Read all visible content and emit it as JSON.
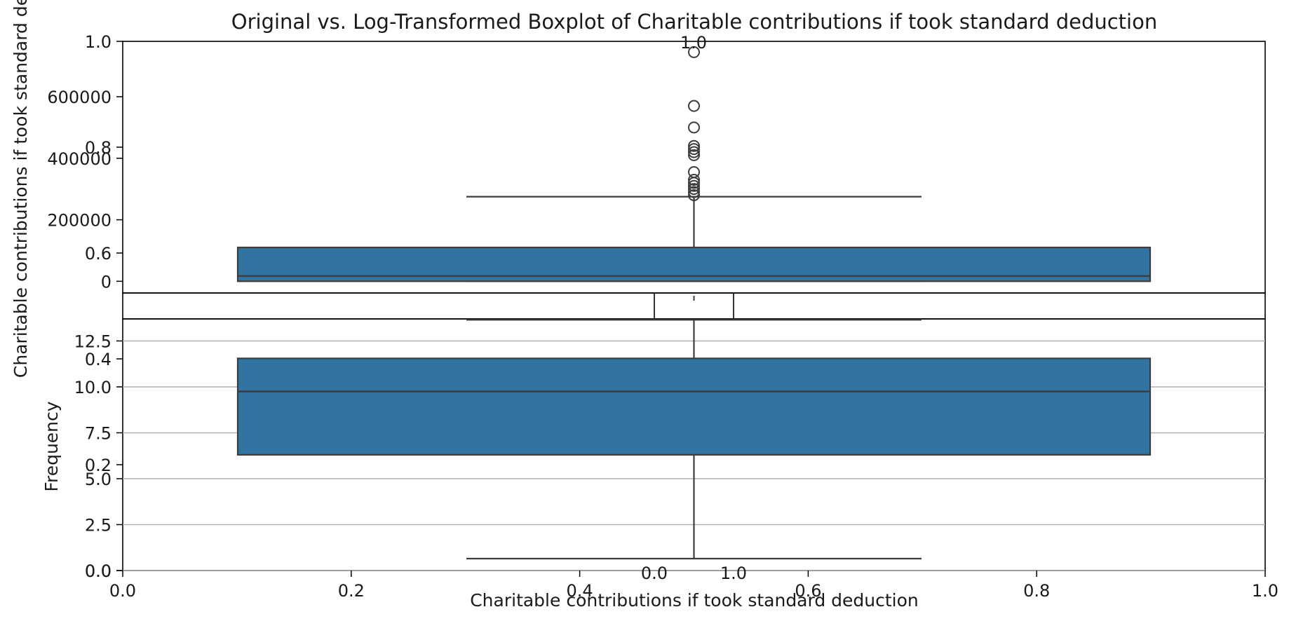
{
  "chart_data": {
    "type": "boxplot",
    "title": "Original vs. Log-Transformed Boxplot of Charitable contributions if took standard deduction",
    "xlabel": "Charitable contributions if took standard deduction",
    "ylabel_top": "Charitable contributions if took standard de",
    "ylabel_bottom": "Frequency",
    "overlay_axis": {
      "x_ticks": [
        "0.0",
        "0.2",
        "0.4",
        "0.6",
        "0.8",
        "1.0"
      ],
      "y_ticks": [
        "0.0",
        "0.2",
        "0.4",
        "0.6",
        "0.8",
        "1.0"
      ],
      "xlim": [
        0,
        1
      ],
      "ylim": [
        0,
        1
      ]
    },
    "middle_axis": {
      "x_ticks": [
        "0.0",
        "0.2",
        "0.4",
        "0.6",
        "0.8",
        "1.0"
      ],
      "y_ticks": [
        "0.0",
        "1.0"
      ],
      "xlim": [
        0,
        1
      ],
      "ylim": [
        0,
        1
      ]
    },
    "top_panel": {
      "name": "Original",
      "y_ticks": [
        "0",
        "200000",
        "400000",
        "600000"
      ],
      "ylim": [
        -38000,
        780000
      ],
      "box": {
        "whislo": 0,
        "q1": 0,
        "med": 17000,
        "q3": 110000,
        "whishi": 275000
      },
      "fliers": [
        280000,
        290000,
        300000,
        310000,
        320000,
        330000,
        355000,
        410000,
        420000,
        430000,
        440000,
        500000,
        570000,
        745000
      ],
      "color": "#3274a1"
    },
    "bottom_panel": {
      "name": "Log-Transformed",
      "y_ticks": [
        "0.0",
        "2.5",
        "5.0",
        "7.5",
        "10.0",
        "12.5"
      ],
      "ylim": [
        0,
        13.7
      ],
      "grid": true,
      "box": {
        "whislo": 0.65,
        "q1": 6.3,
        "med": 9.75,
        "q3": 11.55,
        "whishi": 13.65
      },
      "fliers": [],
      "color": "#3274a1"
    }
  }
}
